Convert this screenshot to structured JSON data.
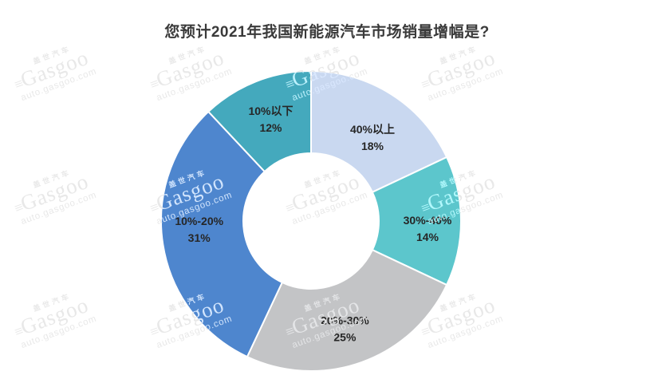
{
  "title": "您预计2021年我国新能源汽车市场销量增幅是?",
  "watermark": {
    "cn": "盖世汽车",
    "brand": "Gasgoo",
    "url": "auto.gasgoo.com"
  },
  "chart_data": {
    "type": "pie",
    "subtype": "donut",
    "title": "您预计2021年我国新能源汽车市场销量增幅是?",
    "categories": [
      "40%以上",
      "30%-40%",
      "20%-30%",
      "10%-20%",
      "10%以下"
    ],
    "values": [
      18,
      14,
      25,
      31,
      12
    ],
    "unit": "%",
    "colors": [
      "#c9d8f0",
      "#5cc6cc",
      "#c3c4c6",
      "#4e86ce",
      "#44a9bd"
    ],
    "start_angle_deg": 0,
    "direction": "clockwise",
    "donut_hole_ratio": 0.45,
    "labels_inside_slices": true,
    "label_format": "category + newline + value%",
    "legend": "none",
    "background": "#ffffff"
  }
}
